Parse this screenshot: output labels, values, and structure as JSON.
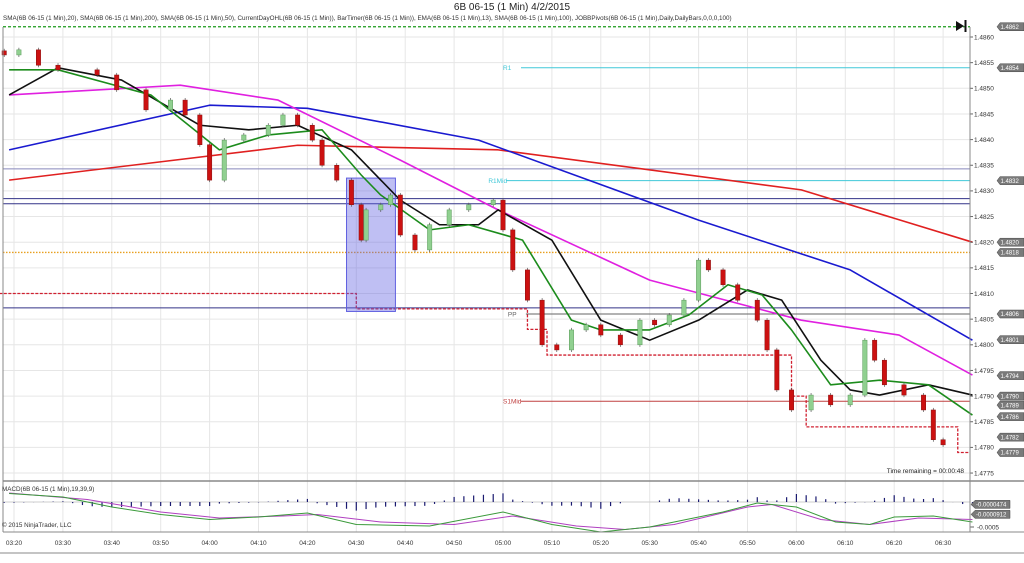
{
  "header": {
    "title": "6B 06-15 (1 Min)  4/2/2015",
    "indicators": "SMA(6B 06-15 (1 Min),20), SMA(6B 06-15 (1 Min),200), SMA(6B 06-15 (1 Min),50), CurrentDayOHL(6B 06-15 (1 Min)), BarTimer(6B 06-15 (1 Min)), EMA(6B 06-15 (1 Min),13), SMA(6B 06-15 (1 Min),100), JOBBPivots(6B 06-15 (1 Min),Daily,DailyBars,0,0,0,100)"
  },
  "footer": {
    "time_remaining": "Time remaining = 00:00:48",
    "copyright": "© 2015 NinjaTrader, LLC",
    "macd_label": "MACD(6B 06-15 (1 Min),19,39,9)"
  },
  "icons": {
    "scroll_end": "skip-to-end-icon"
  },
  "chart_data": {
    "type": "candlestick",
    "instrument": "6B 06-15",
    "timeframe": "1 Min",
    "y_range": [
      1.4772,
      1.4865
    ],
    "y_ticks": [
      "1.4860",
      "1.4855",
      "1.4850",
      "1.4845",
      "1.4840",
      "1.4835",
      "1.4830",
      "1.4825",
      "1.4820",
      "1.4815",
      "1.4810",
      "1.4805",
      "1.4800",
      "1.4795",
      "1.4790",
      "1.4785",
      "1.4780",
      "1.4775"
    ],
    "x_ticks": [
      "03:20",
      "03:30",
      "03:40",
      "03:50",
      "04:00",
      "04:10",
      "04:20",
      "04:30",
      "04:40",
      "04:50",
      "05:00",
      "05:10",
      "05:20",
      "05:30",
      "05:40",
      "05:50",
      "06:00",
      "06:10",
      "06:20",
      "06:30"
    ],
    "grid": true,
    "candles": {
      "times": [
        "03:18",
        "03:21",
        "03:25",
        "03:29",
        "03:37",
        "03:41",
        "03:47",
        "03:52",
        "03:55",
        "03:58",
        "04:00",
        "04:03",
        "04:07",
        "04:12",
        "04:15",
        "04:18",
        "04:21",
        "04:23",
        "04:26",
        "04:29",
        "04:31",
        "04:32",
        "04:35",
        "04:37",
        "04:39",
        "04:42",
        "04:45",
        "04:49",
        "04:53",
        "04:58",
        "05:00",
        "05:02",
        "05:05",
        "05:08",
        "05:11",
        "05:14",
        "05:17",
        "05:20",
        "05:24",
        "05:28",
        "05:31",
        "05:34",
        "05:37",
        "05:40",
        "05:42",
        "05:45",
        "05:48",
        "05:52",
        "05:54",
        "05:56",
        "05:59",
        "06:03",
        "06:07",
        "06:11",
        "06:14",
        "06:16",
        "06:18",
        "06:22",
        "06:26",
        "06:28",
        "06:30"
      ],
      "close": [
        1.48565,
        1.48575,
        1.48545,
        1.48536,
        1.48526,
        1.48497,
        1.48458,
        1.48477,
        1.48448,
        1.4839,
        1.48321,
        1.48399,
        1.48409,
        1.48428,
        1.48448,
        1.48428,
        1.48399,
        1.4835,
        1.48321,
        1.48273,
        1.48204,
        1.48263,
        1.48273,
        1.48292,
        1.48214,
        1.48185,
        1.48234,
        1.48263,
        1.48273,
        1.48282,
        1.48224,
        1.48146,
        1.48087,
        1.48,
        1.4799,
        1.48029,
        1.48039,
        1.48019,
        1.48,
        1.48048,
        1.48039,
        1.48058,
        1.48087,
        1.48165,
        1.48146,
        1.48117,
        1.48087,
        1.48048,
        1.4799,
        1.47912,
        1.47873,
        1.47902,
        1.47883,
        1.47902,
        1.48009,
        1.4797,
        1.47922,
        1.47902,
        1.47873,
        1.47815,
        1.47805
      ],
      "up_color": "#90d090",
      "down_color": "#cc1111"
    },
    "series": [
      {
        "name": "SMA(6B 06-15 (1 Min),200)",
        "color": "#e02020",
        "times": [
          "03:19",
          "04:18",
          "04:59",
          "06:01",
          "06:36"
        ],
        "values": [
          1.48321,
          1.48389,
          1.4838,
          1.48302,
          1.482
        ]
      },
      {
        "name": "SMA(6B 06-15 (1 Min),100)",
        "color": "#1a1ad0",
        "times": [
          "03:19",
          "04:00",
          "04:20",
          "04:55",
          "05:40",
          "06:11",
          "06:36"
        ],
        "values": [
          1.4838,
          1.48467,
          1.48461,
          1.48399,
          1.48243,
          1.48146,
          1.48009
        ]
      },
      {
        "name": "SMA(6B 06-15 (1 Min),50)",
        "color": "#e020e0",
        "times": [
          "03:19",
          "03:54",
          "04:14",
          "04:39",
          "04:59",
          "05:30",
          "06:01",
          "06:21",
          "06:36"
        ],
        "values": [
          1.48487,
          1.48506,
          1.48477,
          1.4836,
          1.48263,
          1.48126,
          1.48048,
          1.48019,
          1.47941
        ]
      },
      {
        "name": "SMA(6B 06-15 (1 Min),20)",
        "color": "#111111",
        "times": [
          "03:19",
          "03:29",
          "03:42",
          "03:58",
          "04:08",
          "04:18",
          "04:29",
          "04:39",
          "04:47",
          "04:55",
          "04:59",
          "05:10",
          "05:20",
          "05:30",
          "05:40",
          "05:50",
          "05:57",
          "06:05",
          "06:11",
          "06:17",
          "06:27",
          "06:36"
        ],
        "values": [
          1.48487,
          1.4854,
          1.48516,
          1.48428,
          1.48419,
          1.48428,
          1.4838,
          1.48282,
          1.48234,
          1.48234,
          1.48263,
          1.48204,
          1.48048,
          1.48009,
          1.48048,
          1.48107,
          1.48087,
          1.4797,
          1.47912,
          1.47902,
          1.47922,
          1.47902
        ]
      },
      {
        "name": "EMA(6B 06-15 (1 Min),13)",
        "color": "#1c8c1c",
        "times": [
          "03:19",
          "03:29",
          "03:48",
          "04:02",
          "04:12",
          "04:23",
          "04:31",
          "04:35",
          "04:45",
          "04:53",
          "05:04",
          "05:14",
          "05:20",
          "05:30",
          "05:38",
          "05:46",
          "05:53",
          "05:59",
          "06:07",
          "06:17",
          "06:27",
          "06:36"
        ],
        "values": [
          1.48536,
          1.48536,
          1.48487,
          1.4838,
          1.48409,
          1.48419,
          1.48331,
          1.48292,
          1.48224,
          1.48234,
          1.48204,
          1.48048,
          1.48029,
          1.48029,
          1.48058,
          1.48117,
          1.48097,
          1.48029,
          1.47922,
          1.47931,
          1.47922,
          1.47863
        ]
      }
    ],
    "levels": [
      {
        "label": "",
        "value": 1.4862,
        "color": "#1a9a1a",
        "style": "dashed",
        "from": "03:17",
        "to": "06:38"
      },
      {
        "label": "R1",
        "value": 1.4854,
        "color": "#40c8d8",
        "style": "solid",
        "from": "05:00",
        "to": "06:38"
      },
      {
        "label": "",
        "value": 1.48343,
        "color": "#8888bb",
        "style": "solid",
        "from": "03:17",
        "to": "06:38"
      },
      {
        "label": "R1Mid",
        "value": 1.4832,
        "color": "#40c8d8",
        "style": "solid",
        "from": "04:57",
        "to": "06:38"
      },
      {
        "label": "",
        "value": 1.48285,
        "color": "#333388",
        "style": "solid",
        "from": "03:17",
        "to": "06:38"
      },
      {
        "label": "",
        "value": 1.48275,
        "color": "#333388",
        "style": "solid",
        "from": "03:17",
        "to": "06:38"
      },
      {
        "label": "",
        "value": 1.4818,
        "color": "#e8a020",
        "style": "dotted",
        "from": "03:17",
        "to": "06:38"
      },
      {
        "label": "",
        "value": 1.48072,
        "color": "#333388",
        "style": "solid",
        "from": "03:17",
        "to": "06:38"
      },
      {
        "label": "PP",
        "value": 1.4806,
        "color": "#666666",
        "style": "solid",
        "from": "05:01",
        "to": "06:38"
      },
      {
        "label": "S1Mid",
        "value": 1.4789,
        "color": "#c04040",
        "style": "solid",
        "from": "05:00",
        "to": "06:38"
      }
    ],
    "session_low": {
      "color": "#d02030",
      "times": [
        "03:17",
        "04:30",
        "04:30",
        "05:05",
        "05:05",
        "05:09",
        "05:09",
        "05:59",
        "05:59",
        "06:02",
        "06:02",
        "06:33",
        "06:33",
        "06:38"
      ],
      "values": [
        1.481,
        1.481,
        1.4807,
        1.4807,
        1.4803,
        1.4803,
        1.4798,
        1.4798,
        1.479,
        1.479,
        1.4784,
        1.4784,
        1.4779,
        1.4779
      ]
    },
    "highlight_box": {
      "from": "04:28",
      "to": "04:38",
      "top": 1.48325,
      "bottom": 1.48065,
      "color": "#6060e0"
    },
    "price_markers": [
      {
        "label": "1.4862",
        "value": 1.4862
      },
      {
        "label": "1.4854",
        "value": 1.4854
      },
      {
        "label": "1.4832",
        "value": 1.4832
      },
      {
        "label": "1.4820",
        "value": 1.482
      },
      {
        "label": "1.4818",
        "value": 1.4818
      },
      {
        "label": "1.4806",
        "value": 1.4806
      },
      {
        "label": "1.4801",
        "value": 1.4801
      },
      {
        "label": "1.4794",
        "value": 1.4794
      },
      {
        "label": "1.4790",
        "value": 1.479
      },
      {
        "label": "1.4789",
        "value": 1.4789
      },
      {
        "label": "1.4786",
        "value": 1.4786
      },
      {
        "label": "1.4782",
        "value": 1.4782
      },
      {
        "label": "1.4779",
        "value": 1.4779
      }
    ],
    "macd": {
      "y_ticks": [
        "-0.0005"
      ],
      "markers": [
        {
          "label": "-0.0000474",
          "value": -4.74e-05
        },
        {
          "label": "-0.0000912",
          "value": -9.12e-05
        }
      ],
      "macd_color": "#3a9a3a",
      "signal_color": "#b040c0",
      "hist_color": "#1a1a70",
      "macd_line": {
        "times": [
          "03:19",
          "03:30",
          "03:40",
          "03:50",
          "04:00",
          "04:10",
          "04:20",
          "04:30",
          "04:45",
          "05:00",
          "05:10",
          "05:20",
          "05:30",
          "05:45",
          "05:52",
          "06:00",
          "06:08",
          "06:15",
          "06:20",
          "06:28",
          "06:36"
        ],
        "values": [
          0.00017,
          0.0001,
          -0.0001,
          -0.00025,
          -0.00035,
          -0.0003,
          -0.00022,
          -0.00045,
          -0.00048,
          -0.0002,
          -0.00045,
          -0.0006,
          -0.0005,
          -0.0002,
          -2e-05,
          -0.0001,
          -0.0004,
          -0.00045,
          -0.0003,
          -0.00028,
          -0.0004
        ]
      },
      "signal_line": {
        "times": [
          "03:19",
          "03:35",
          "03:50",
          "04:02",
          "04:15",
          "04:22",
          "04:35",
          "04:50",
          "05:02",
          "05:15",
          "05:25",
          "05:35",
          "05:50",
          "05:55",
          "06:05",
          "06:15",
          "06:25",
          "06:36"
        ],
        "values": [
          0.00018,
          5e-05,
          -0.0002,
          -0.00032,
          -0.00028,
          -0.00025,
          -0.0004,
          -0.00045,
          -0.00028,
          -0.00048,
          -0.00055,
          -0.00045,
          -0.0001,
          -5e-05,
          -0.00035,
          -0.00045,
          -0.00032,
          -0.00035
        ]
      }
    }
  }
}
